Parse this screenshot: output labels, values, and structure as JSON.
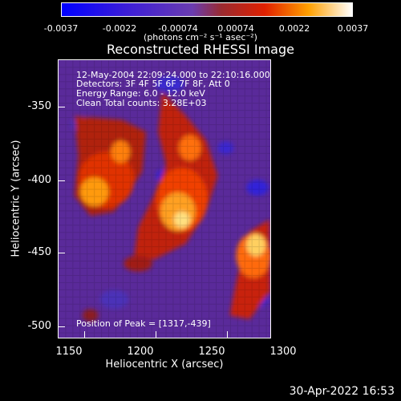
{
  "colorbar": {
    "ticks": [
      "-0.0037",
      "-0.0022",
      "-0.00074",
      "0.00074",
      "0.0022",
      "0.0037"
    ],
    "units_label": "(photons cm⁻² s⁻¹ asec⁻²)"
  },
  "plot": {
    "title": "Reconstructed RHESSI Image",
    "info_lines": [
      "12-May-2004 22:09:24.000 to 22:10:16.000",
      "Detectors: 3F 4F 5F 6F 7F 8F, Att 0",
      "Energy Range: 6.0 - 12.0 keV",
      "Clean     Total counts: 3.28E+03"
    ],
    "peak_label": "Position of Peak = [1317,-439]",
    "y_ticks": [
      "-350",
      "-400",
      "-450",
      "-500"
    ],
    "x_ticks": [
      "1150",
      "1200",
      "1250",
      "1300"
    ],
    "ylabel": "Heliocentric Y (arcsec)",
    "xlabel": "Heliocentric X (arcsec)"
  },
  "footer": {
    "timestamp": "30-Apr-2022 16:53"
  }
}
